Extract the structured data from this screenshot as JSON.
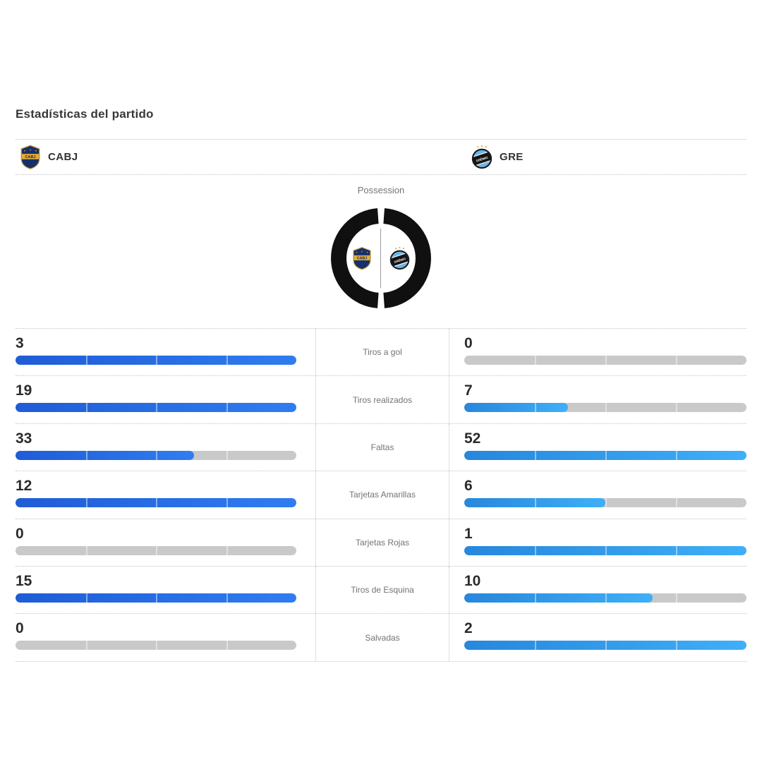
{
  "page": {
    "title": "Estadísticas del partido"
  },
  "teams": {
    "home": {
      "abbr": "CABJ",
      "badge_icon": "boca-juniors-crest"
    },
    "away": {
      "abbr": "GRE",
      "badge_icon": "gremio-crest"
    }
  },
  "possession": {
    "label": "Possession",
    "home_color": "#101010",
    "away_color": "#101010"
  },
  "colors": {
    "home_bar_start": "#1F5CD6",
    "home_bar_end": "#2F7DF0",
    "away_bar_start": "#2787DC",
    "away_bar_end": "#3FAFF8",
    "track": "#c9c9c9"
  },
  "chart_data": {
    "type": "bar",
    "title": "Estadísticas del partido",
    "categories": [
      "Tiros a gol",
      "Tiros realizados",
      "Faltas",
      "Tarjetas Amarillas",
      "Tarjetas Rojas",
      "Tiros de Esquina",
      "Salvadas"
    ],
    "series": [
      {
        "name": "CABJ",
        "values": [
          3,
          19,
          33,
          12,
          0,
          15,
          0
        ]
      },
      {
        "name": "GRE",
        "values": [
          0,
          7,
          52,
          6,
          1,
          10,
          2
        ]
      }
    ],
    "note": "Each bar is scaled to the max of the two values in its row"
  },
  "stats": [
    {
      "label": "Tiros a gol",
      "home": 3,
      "away": 0
    },
    {
      "label": "Tiros realizados",
      "home": 19,
      "away": 7
    },
    {
      "label": "Faltas",
      "home": 33,
      "away": 52
    },
    {
      "label": "Tarjetas Amarillas",
      "home": 12,
      "away": 6
    },
    {
      "label": "Tarjetas Rojas",
      "home": 0,
      "away": 1
    },
    {
      "label": "Tiros de Esquina",
      "home": 15,
      "away": 10
    },
    {
      "label": "Salvadas",
      "home": 0,
      "away": 2
    }
  ]
}
